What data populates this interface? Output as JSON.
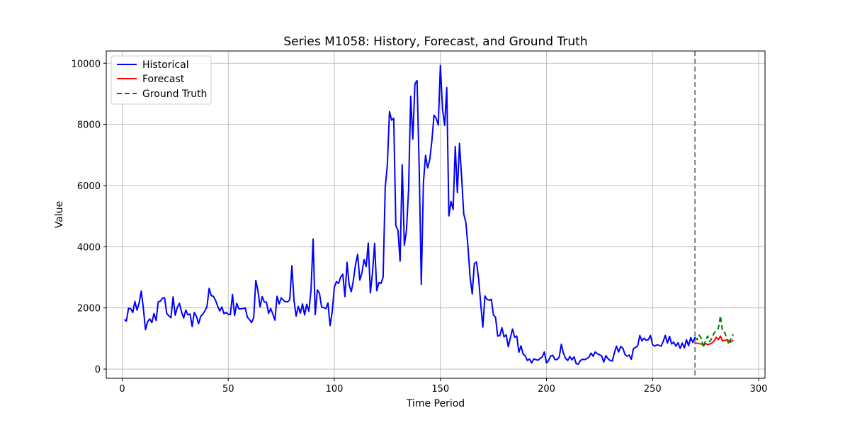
{
  "chart_data": {
    "type": "line",
    "title": "Series M1058: History, Forecast, and Ground Truth",
    "xlabel": "Time Period",
    "ylabel": "Value",
    "xlim": [
      -7.5,
      303
    ],
    "ylim": [
      -300,
      10400
    ],
    "xticks": [
      0,
      50,
      100,
      150,
      200,
      250,
      300
    ],
    "yticks": [
      0,
      2000,
      4000,
      6000,
      8000,
      10000
    ],
    "grid": true,
    "legend_position": "top-left",
    "forecast_start_line": {
      "x": 270,
      "color": "#808080",
      "style": "dashed"
    },
    "series": [
      {
        "name": "Historical",
        "color": "#0000ff",
        "style": "solid",
        "x": [
          1,
          2,
          3,
          4,
          5,
          6,
          7,
          8,
          9,
          10,
          11,
          12,
          13,
          14,
          15,
          16,
          17,
          18,
          19,
          20,
          21,
          22,
          23,
          24,
          25,
          26,
          27,
          28,
          29,
          30,
          31,
          32,
          33,
          34,
          35,
          36,
          37,
          38,
          39,
          40,
          41,
          42,
          43,
          44,
          45,
          46,
          47,
          48,
          49,
          50,
          51,
          52,
          53,
          54,
          55,
          56,
          57,
          58,
          59,
          60,
          61,
          62,
          63,
          64,
          65,
          66,
          67,
          68,
          69,
          70,
          71,
          72,
          73,
          74,
          75,
          76,
          77,
          78,
          79,
          80,
          81,
          82,
          83,
          84,
          85,
          86,
          87,
          88,
          89,
          90,
          91,
          92,
          93,
          94,
          95,
          96,
          97,
          98,
          99,
          100,
          101,
          102,
          103,
          104,
          105,
          106,
          107,
          108,
          109,
          110,
          111,
          112,
          113,
          114,
          115,
          116,
          117,
          118,
          119,
          120,
          121,
          122,
          123,
          124,
          125,
          126,
          127,
          128,
          129,
          130,
          131,
          132,
          133,
          134,
          135,
          136,
          137,
          138,
          139,
          140,
          141,
          142,
          143,
          144,
          145,
          146,
          147,
          148,
          149,
          150,
          151,
          152,
          153,
          154,
          155,
          156,
          157,
          158,
          159,
          160,
          161,
          162,
          163,
          164,
          165,
          166,
          167,
          168,
          169,
          170,
          171,
          172,
          173,
          174,
          175,
          176,
          177,
          178,
          179,
          180,
          181,
          182,
          183,
          184,
          185,
          186,
          187,
          188,
          189,
          190,
          191,
          192,
          193,
          194,
          195,
          196,
          197,
          198,
          199,
          200,
          201,
          202,
          203,
          204,
          205,
          206,
          207,
          208,
          209,
          210,
          211,
          212,
          213,
          214,
          215,
          216,
          217,
          218,
          219,
          220,
          221,
          222,
          223,
          224,
          225,
          226,
          227,
          228,
          229,
          230,
          231,
          232,
          233,
          234,
          235,
          236,
          237,
          238,
          239,
          240,
          241,
          242,
          243,
          244,
          245,
          246,
          247,
          248,
          249,
          250,
          251,
          252,
          253,
          254,
          255,
          256,
          257,
          258,
          259,
          260,
          261,
          262,
          263,
          264,
          265,
          266,
          267,
          268,
          269,
          270
        ],
        "values": [
          1620,
          1570,
          1990,
          1970,
          1850,
          2210,
          1930,
          2160,
          2550,
          1980,
          1290,
          1550,
          1640,
          1520,
          1820,
          1590,
          2200,
          2220,
          2320,
          2330,
          1820,
          1740,
          1680,
          2360,
          1760,
          2020,
          2150,
          1870,
          1670,
          1930,
          1770,
          1800,
          1390,
          1850,
          1730,
          1480,
          1720,
          1800,
          1900,
          2050,
          2640,
          2400,
          2380,
          2250,
          2060,
          1900,
          2030,
          1810,
          1850,
          1790,
          1780,
          2440,
          1750,
          2150,
          1970,
          1970,
          1980,
          2000,
          1700,
          1620,
          1520,
          1680,
          2900,
          2560,
          2030,
          2370,
          2190,
          2190,
          1820,
          1980,
          1800,
          1600,
          2380,
          2130,
          2330,
          2250,
          2200,
          2200,
          2270,
          3380,
          2250,
          1730,
          2050,
          1830,
          2130,
          1770,
          2120,
          1890,
          2560,
          4250,
          1780,
          2590,
          2480,
          2030,
          2010,
          1980,
          2160,
          1420,
          1870,
          2670,
          2860,
          2800,
          3010,
          3100,
          2370,
          3490,
          2750,
          2530,
          2910,
          3420,
          3750,
          2910,
          3140,
          3580,
          3350,
          4120,
          2490,
          3160,
          4110,
          2560,
          2830,
          2800,
          3000,
          5950,
          6680,
          8420,
          8140,
          8200,
          4690,
          4540,
          3530,
          6680,
          4050,
          4530,
          5860,
          8920,
          7520,
          9330,
          9430,
          6580,
          2770,
          6100,
          6990,
          6580,
          6850,
          7480,
          8300,
          8200,
          7980,
          9930,
          8500,
          7970,
          9200,
          5010,
          5480,
          5220,
          7280,
          5770,
          7380,
          6280,
          5070,
          4800,
          4000,
          3000,
          2460,
          3450,
          3500,
          2970,
          2140,
          1370,
          2390,
          2280,
          2250,
          2280,
          1770,
          1690,
          1080,
          1090,
          1350,
          1050,
          1120,
          730,
          1030,
          1310,
          1040,
          1080,
          550,
          760,
          490,
          430,
          280,
          330,
          200,
          330,
          310,
          290,
          350,
          400,
          560,
          200,
          280,
          430,
          450,
          310,
          310,
          390,
          810,
          520,
          350,
          280,
          410,
          300,
          400,
          180,
          160,
          280,
          320,
          310,
          340,
          390,
          520,
          420,
          560,
          500,
          470,
          430,
          230,
          440,
          340,
          280,
          260,
          530,
          750,
          560,
          740,
          680,
          480,
          420,
          460,
          320,
          670,
          710,
          760,
          1100,
          920,
          1010,
          940,
          960,
          1100,
          800,
          750,
          790,
          780,
          750,
          900,
          1100,
          850,
          1070,
          820,
          880,
          750,
          860,
          680,
          850,
          690,
          960,
          760,
          1030,
          870,
          1040
        ]
      },
      {
        "name": "Forecast",
        "color": "#ff0000",
        "style": "solid",
        "x": [
          270,
          271,
          272,
          273,
          274,
          275,
          276,
          277,
          278,
          279,
          280,
          281,
          282,
          283,
          284,
          285,
          286,
          287,
          288
        ],
        "values": [
          840,
          850,
          830,
          820,
          810,
          830,
          800,
          820,
          850,
          920,
          1040,
          960,
          1080,
          920,
          940,
          950,
          930,
          890,
          950
        ]
      },
      {
        "name": "Ground Truth",
        "color": "#008000",
        "style": "dashed",
        "x": [
          270,
          271,
          272,
          273,
          274,
          275,
          276,
          277,
          278,
          279,
          280,
          281,
          282,
          283,
          284,
          285,
          286,
          287,
          288
        ],
        "values": [
          1040,
          960,
          1110,
          1000,
          700,
          950,
          1080,
          900,
          1020,
          1180,
          1250,
          1330,
          1740,
          1230,
          1200,
          1000,
          800,
          1000,
          1140
        ]
      }
    ]
  }
}
